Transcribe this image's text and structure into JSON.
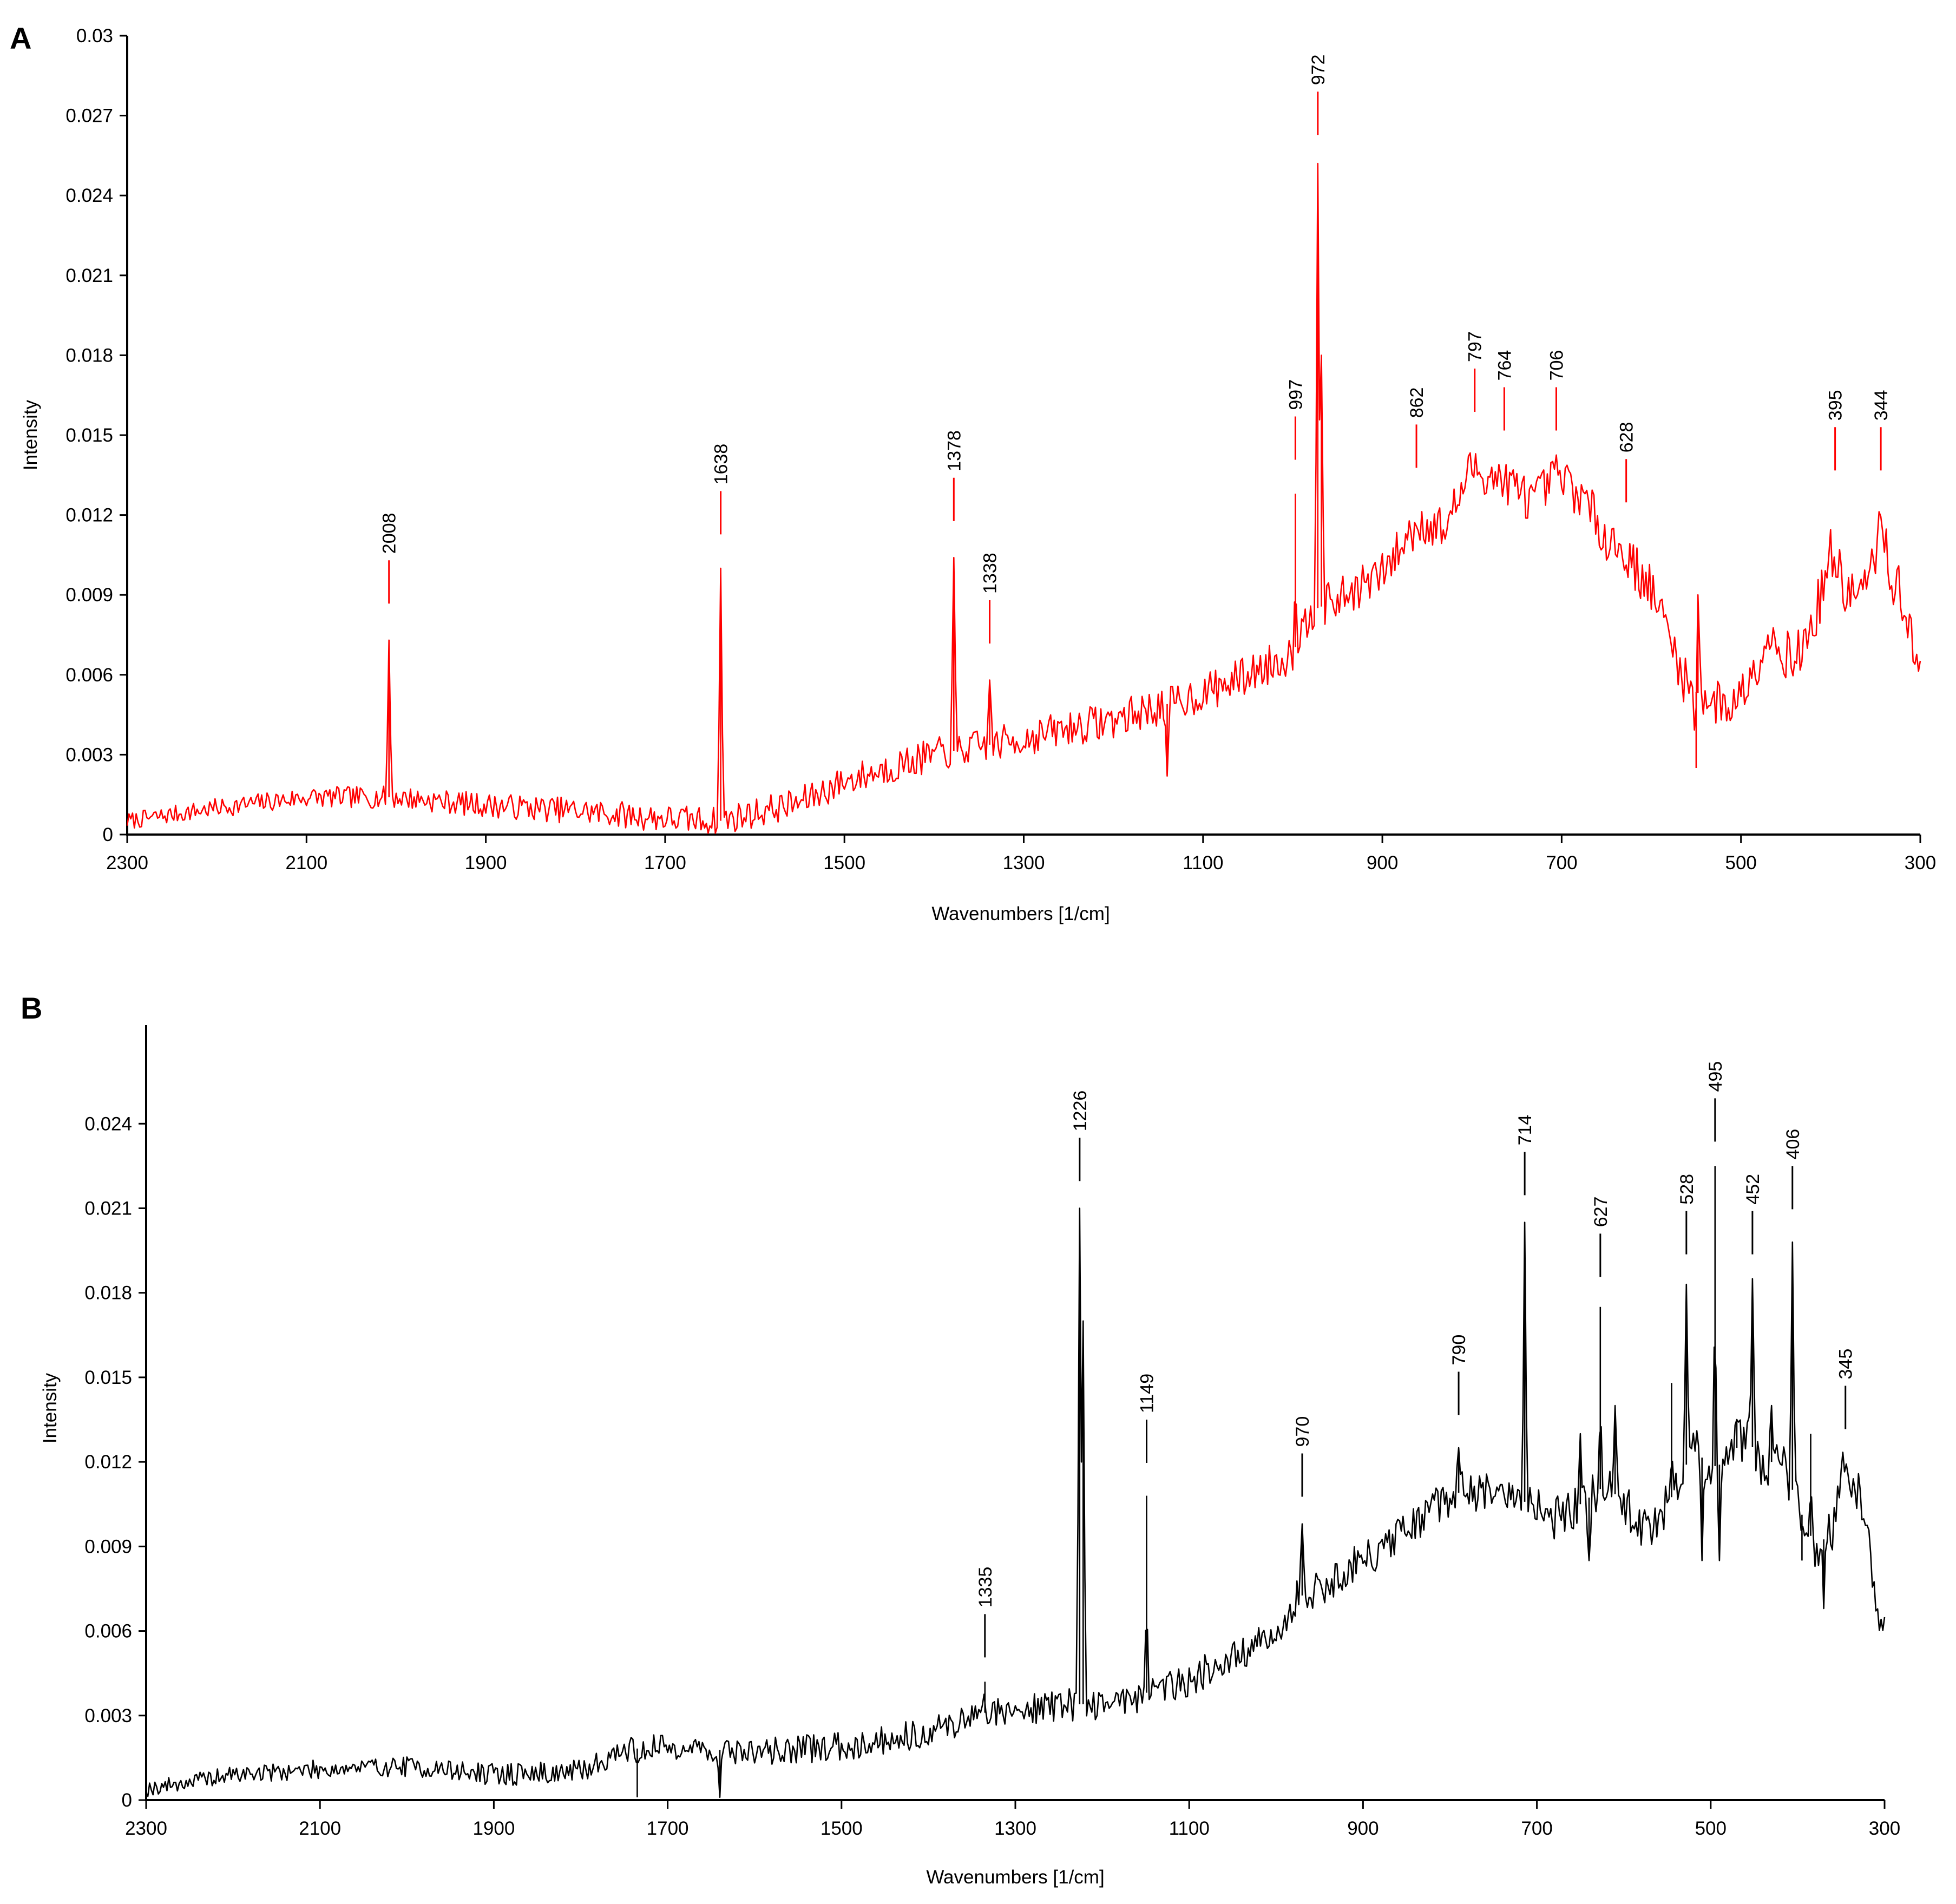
{
  "chart_data": [
    {
      "panel": "A",
      "type": "line",
      "color": "#ff0000",
      "xlabel": "Wavenumbers [1/cm]",
      "ylabel": "Intensity",
      "xlim": [
        2300,
        300
      ],
      "ylim": [
        0,
        0.03
      ],
      "x_reversed": true,
      "x_ticks": [
        2300,
        2100,
        1900,
        1700,
        1500,
        1300,
        1100,
        900,
        700,
        500,
        300
      ],
      "y_ticks": [
        0,
        0.003,
        0.006,
        0.009,
        0.012,
        0.015,
        0.018,
        0.021,
        0.024,
        0.027,
        0.03
      ],
      "y_tick_labels": [
        "0",
        "0.003",
        "0.006",
        "0.009",
        "0.012",
        "0.015",
        "0.018",
        "0.021",
        "0.024",
        "0.027",
        "0.03"
      ],
      "grid": false,
      "baseline": [
        [
          2300,
          0.0005
        ],
        [
          2200,
          0.001
        ],
        [
          2100,
          0.0014
        ],
        [
          2000,
          0.0014
        ],
        [
          1900,
          0.0011
        ],
        [
          1800,
          0.0009
        ],
        [
          1700,
          0.0006
        ],
        [
          1640,
          0.0005
        ],
        [
          1550,
          0.0012
        ],
        [
          1500,
          0.002
        ],
        [
          1450,
          0.0025
        ],
        [
          1400,
          0.003
        ],
        [
          1350,
          0.0033
        ],
        [
          1300,
          0.0036
        ],
        [
          1250,
          0.004
        ],
        [
          1200,
          0.0043
        ],
        [
          1150,
          0.0048
        ],
        [
          1100,
          0.0053
        ],
        [
          1050,
          0.006
        ],
        [
          1000,
          0.0068
        ],
        [
          980,
          0.0084
        ],
        [
          950,
          0.0088
        ],
        [
          900,
          0.0098
        ],
        [
          860,
          0.0117
        ],
        [
          830,
          0.0115
        ],
        [
          800,
          0.0138
        ],
        [
          780,
          0.0135
        ],
        [
          760,
          0.0132
        ],
        [
          730,
          0.0125
        ],
        [
          706,
          0.0135
        ],
        [
          680,
          0.0128
        ],
        [
          650,
          0.0112
        ],
        [
          628,
          0.0105
        ],
        [
          600,
          0.0092
        ],
        [
          580,
          0.0075
        ],
        [
          560,
          0.0055
        ],
        [
          540,
          0.0052
        ],
        [
          520,
          0.0048
        ],
        [
          500,
          0.0052
        ],
        [
          470,
          0.0075
        ],
        [
          440,
          0.0065
        ],
        [
          420,
          0.0078
        ],
        [
          400,
          0.0105
        ],
        [
          380,
          0.009
        ],
        [
          360,
          0.0092
        ],
        [
          344,
          0.0115
        ],
        [
          330,
          0.0095
        ],
        [
          315,
          0.0085
        ],
        [
          305,
          0.006
        ],
        [
          300,
          0.006
        ]
      ],
      "spikes": [
        {
          "x": 2008,
          "y": 0.0073
        },
        {
          "x": 1638,
          "y": 0.01
        },
        {
          "x": 1378,
          "y": 0.0104
        },
        {
          "x": 1338,
          "y": 0.0058
        },
        {
          "x": 1140,
          "y": 0.0022
        },
        {
          "x": 997,
          "y": 0.0128
        },
        {
          "x": 972,
          "y": 0.0252
        },
        {
          "x": 968,
          "y": 0.018
        },
        {
          "x": 550,
          "y": 0.0025
        },
        {
          "x": 548,
          "y": 0.009
        }
      ],
      "peak_labels": [
        {
          "label": "2008",
          "x": 2008,
          "y": 0.0103
        },
        {
          "label": "1638",
          "x": 1638,
          "y": 0.0129
        },
        {
          "label": "1378",
          "x": 1378,
          "y": 0.0134
        },
        {
          "label": "1338",
          "x": 1338,
          "y": 0.0088
        },
        {
          "label": "997",
          "x": 997,
          "y": 0.0157
        },
        {
          "label": "972",
          "x": 972,
          "y": 0.0279
        },
        {
          "label": "862",
          "x": 862,
          "y": 0.0154
        },
        {
          "label": "797",
          "x": 797,
          "y": 0.0175
        },
        {
          "label": "764",
          "x": 764,
          "y": 0.0168
        },
        {
          "label": "706",
          "x": 706,
          "y": 0.0168
        },
        {
          "label": "628",
          "x": 628,
          "y": 0.0141
        },
        {
          "label": "395",
          "x": 395,
          "y": 0.0153
        },
        {
          "label": "344",
          "x": 344,
          "y": 0.0153
        }
      ]
    },
    {
      "panel": "B",
      "type": "line",
      "color": "#000000",
      "xlabel": "Wavenumbers [1/cm]",
      "ylabel": "Intensity",
      "xlim": [
        2300,
        300
      ],
      "ylim": [
        0,
        0.0275
      ],
      "x_reversed": true,
      "x_ticks": [
        2300,
        2100,
        1900,
        1700,
        1500,
        1300,
        1100,
        900,
        700,
        500,
        300
      ],
      "y_ticks": [
        0,
        0.003,
        0.006,
        0.009,
        0.012,
        0.015,
        0.018,
        0.021,
        0.024
      ],
      "y_tick_labels": [
        "0",
        "0.003",
        "0.006",
        "0.009",
        "0.012",
        "0.015",
        "0.018",
        "0.021",
        "0.024"
      ],
      "grid": false,
      "baseline": [
        [
          2300,
          0.0004
        ],
        [
          2200,
          0.0009
        ],
        [
          2100,
          0.0011
        ],
        [
          2000,
          0.0012
        ],
        [
          1900,
          0.0009
        ],
        [
          1800,
          0.001
        ],
        [
          1750,
          0.0018
        ],
        [
          1700,
          0.0019
        ],
        [
          1600,
          0.0017
        ],
        [
          1500,
          0.0019
        ],
        [
          1400,
          0.0024
        ],
        [
          1335,
          0.0031
        ],
        [
          1300,
          0.0032
        ],
        [
          1250,
          0.0034
        ],
        [
          1200,
          0.0034
        ],
        [
          1150,
          0.0038
        ],
        [
          1100,
          0.0043
        ],
        [
          1050,
          0.005
        ],
        [
          1000,
          0.0058
        ],
        [
          975,
          0.0072
        ],
        [
          950,
          0.0075
        ],
        [
          900,
          0.0085
        ],
        [
          850,
          0.0095
        ],
        [
          800,
          0.0108
        ],
        [
          780,
          0.011
        ],
        [
          750,
          0.0108
        ],
        [
          700,
          0.0105
        ],
        [
          680,
          0.01
        ],
        [
          650,
          0.0105
        ],
        [
          620,
          0.0112
        ],
        [
          600,
          0.0105
        ],
        [
          570,
          0.0095
        ],
        [
          540,
          0.011
        ],
        [
          520,
          0.0125
        ],
        [
          500,
          0.0118
        ],
        [
          480,
          0.012
        ],
        [
          460,
          0.013
        ],
        [
          440,
          0.0118
        ],
        [
          420,
          0.0122
        ],
        [
          400,
          0.0105
        ],
        [
          380,
          0.009
        ],
        [
          360,
          0.0095
        ],
        [
          345,
          0.012
        ],
        [
          330,
          0.0108
        ],
        [
          315,
          0.0085
        ],
        [
          305,
          0.0065
        ],
        [
          300,
          0.006
        ]
      ],
      "spikes": [
        {
          "x": 1735,
          "y": 0.0001
        },
        {
          "x": 1640,
          "y": 0.0001
        },
        {
          "x": 1335,
          "y": 0.0042
        },
        {
          "x": 1226,
          "y": 0.021
        },
        {
          "x": 1222,
          "y": 0.017
        },
        {
          "x": 1149,
          "y": 0.0108
        },
        {
          "x": 970,
          "y": 0.0098
        },
        {
          "x": 790,
          "y": 0.0125
        },
        {
          "x": 714,
          "y": 0.0205
        },
        {
          "x": 650,
          "y": 0.013
        },
        {
          "x": 640,
          "y": 0.0085
        },
        {
          "x": 627,
          "y": 0.0175
        },
        {
          "x": 610,
          "y": 0.014
        },
        {
          "x": 545,
          "y": 0.0148
        },
        {
          "x": 528,
          "y": 0.0183
        },
        {
          "x": 510,
          "y": 0.0085
        },
        {
          "x": 495,
          "y": 0.0225
        },
        {
          "x": 490,
          "y": 0.0085
        },
        {
          "x": 470,
          "y": 0.0135
        },
        {
          "x": 452,
          "y": 0.0185
        },
        {
          "x": 430,
          "y": 0.014
        },
        {
          "x": 406,
          "y": 0.0198
        },
        {
          "x": 395,
          "y": 0.0085
        },
        {
          "x": 385,
          "y": 0.013
        },
        {
          "x": 370,
          "y": 0.0068
        }
      ],
      "peak_labels": [
        {
          "label": "1335",
          "x": 1335,
          "y": 0.0066
        },
        {
          "label": "1226",
          "x": 1226,
          "y": 0.0235
        },
        {
          "label": "1149",
          "x": 1149,
          "y": 0.0135
        },
        {
          "label": "970",
          "x": 970,
          "y": 0.0123
        },
        {
          "label": "790",
          "x": 790,
          "y": 0.0152
        },
        {
          "label": "714",
          "x": 714,
          "y": 0.023
        },
        {
          "label": "627",
          "x": 627,
          "y": 0.0201
        },
        {
          "label": "528",
          "x": 528,
          "y": 0.0209
        },
        {
          "label": "495",
          "x": 495,
          "y": 0.0249
        },
        {
          "label": "452",
          "x": 452,
          "y": 0.0209
        },
        {
          "label": "406",
          "x": 406,
          "y": 0.0225
        },
        {
          "label": "345",
          "x": 345,
          "y": 0.0147
        }
      ]
    }
  ]
}
